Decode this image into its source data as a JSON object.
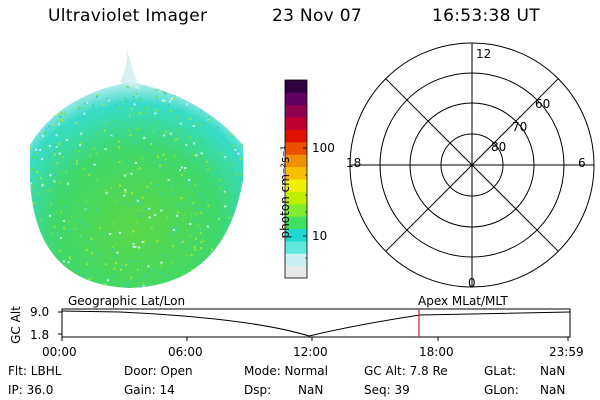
{
  "header": {
    "instrument": "Ultraviolet Imager",
    "date": "23 Nov 07",
    "time": "16:53:38 UT"
  },
  "colorbar": {
    "unit_label": "photon cm⁻²s⁻¹",
    "tick_high": "100",
    "tick_low": "10",
    "colors": [
      "#e8e8e8",
      "#c8f0f0",
      "#60e8e0",
      "#20d8d0",
      "#40e060",
      "#80ec30",
      "#c0f000",
      "#f0f000",
      "#f8c000",
      "#f09000",
      "#e85000",
      "#e01000",
      "#c00030",
      "#900050",
      "#600060",
      "#300040"
    ]
  },
  "polar_plot": {
    "mlt_labels": [
      "12",
      "18",
      "6",
      "0"
    ],
    "lat_labels": [
      "60",
      "70",
      "80"
    ]
  },
  "orbit_plot": {
    "ylabel": "GC Alt",
    "y_ticks": [
      "9.0",
      "1.8"
    ],
    "left_label": "Geographic Lat/Lon",
    "right_label": "Apex MLat/MLT",
    "x_ticks": [
      "00:00",
      "06:00",
      "12:00",
      "18:00",
      "23:59"
    ],
    "current_time_marker": "16:53:38",
    "marker_color": "#d02020"
  },
  "info_fields": {
    "flt": "Flt: LBHL",
    "ip": "IP: 36.0",
    "door": "Door: Open",
    "gain": "Gain: 14",
    "mode": "Mode: Normal",
    "dsp": "Dsp:",
    "dsp_value": "NaN",
    "gc_alt": "GC Alt: 7.8 Re",
    "seq": "Seq: 39",
    "glat": "GLat:",
    "glat_value": "NaN",
    "glon": "GLon:",
    "glon_value": "NaN"
  }
}
